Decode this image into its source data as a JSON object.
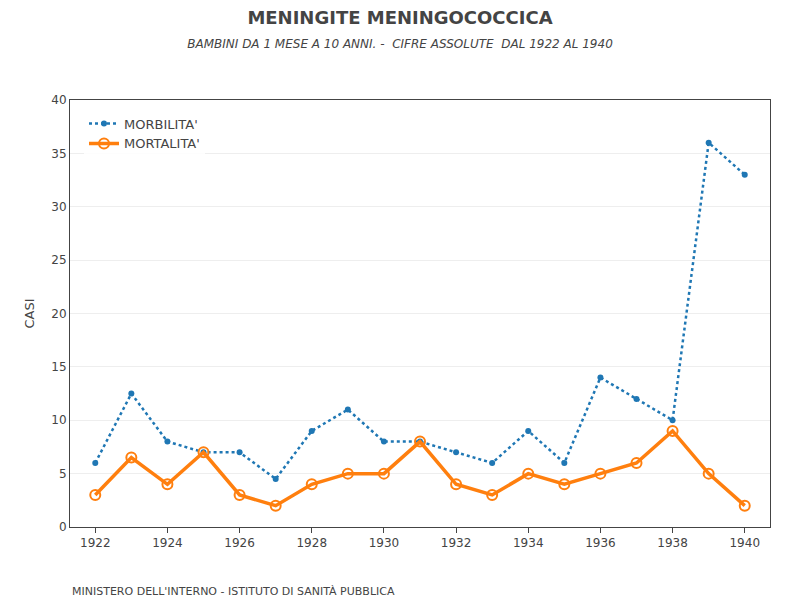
{
  "chart_data": {
    "type": "line",
    "title": "MENINGITE MENINGOCOCCICA",
    "subtitle": "BAMBINI DA 1 MESE A 10 ANNI. -  CIFRE ASSOLUTE  DAL 1922 AL 1940",
    "ylabel": "CASI",
    "annotations": [
      "MINISTERO DELL'INTERNO - ISTITUTO DI SANITÀ PUBBLICA"
    ],
    "x": [
      1922,
      1923,
      1924,
      1925,
      1926,
      1927,
      1928,
      1929,
      1930,
      1931,
      1932,
      1933,
      1934,
      1935,
      1936,
      1937,
      1938,
      1939,
      1940
    ],
    "series": [
      {
        "name": "MORBILITA'",
        "line_style": "dotted",
        "marker": "circle",
        "values": [
          6,
          12.5,
          8,
          7,
          7,
          4.5,
          9,
          11,
          8,
          8,
          7,
          6,
          9,
          6,
          14,
          12,
          10,
          36,
          33
        ]
      },
      {
        "name": "MORTALITA'",
        "line_style": "solid",
        "marker": "circle-open",
        "values": [
          3,
          6.5,
          4,
          7,
          3,
          2,
          4,
          5,
          5,
          8,
          4,
          3,
          5,
          4,
          5,
          6,
          9,
          5,
          2
        ]
      }
    ],
    "xlim": [
      1921.3,
      1940.7
    ],
    "xticks": [
      1922,
      1924,
      1926,
      1928,
      1930,
      1932,
      1934,
      1936,
      1938,
      1940
    ],
    "ylim": [
      0,
      40
    ],
    "yticks": [
      0,
      5,
      10,
      15,
      20,
      25,
      30,
      35,
      40
    ],
    "grid": "y",
    "legend": "upper left"
  }
}
